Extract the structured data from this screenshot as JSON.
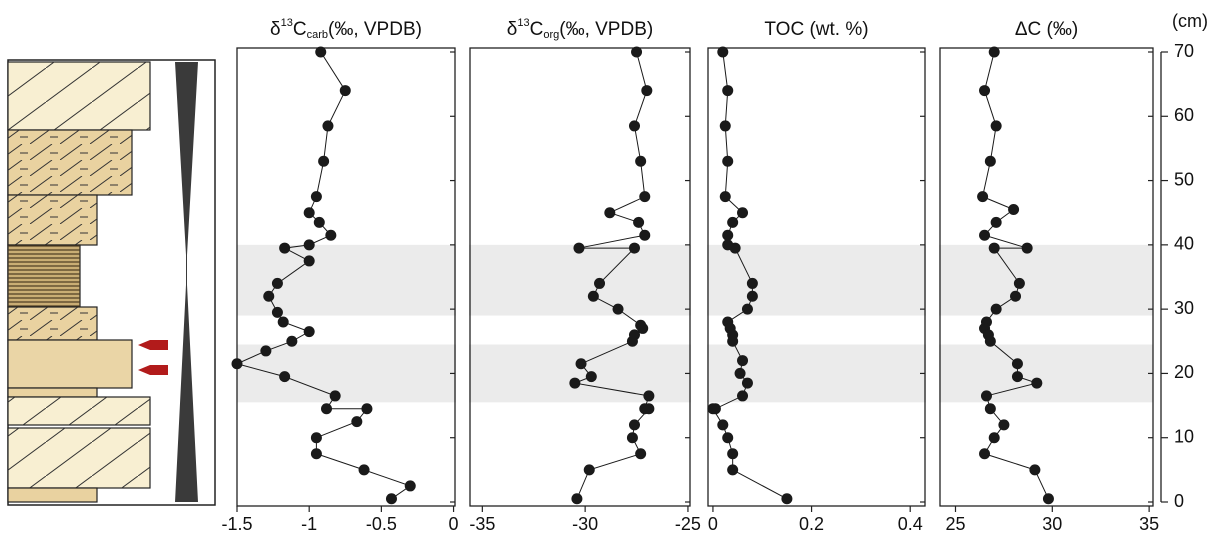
{
  "chart_data": [
    {
      "type": "line",
      "title_parts": [
        "δ",
        "13",
        "C",
        "carb",
        "(‰, VPDB)"
      ],
      "values": [
        -0.92,
        -0.75,
        -0.87,
        -0.9,
        -0.95,
        -1.0,
        -0.93,
        -0.85,
        -1.0,
        -1.17,
        -1.0,
        -1.22,
        -1.28,
        -1.22,
        -1.18,
        -1.0,
        -1.12,
        -1.3,
        -1.5,
        -1.17,
        -0.82,
        -0.88,
        -0.6,
        -0.67,
        -0.95,
        -0.95,
        -0.62,
        -0.3,
        -0.43
      ],
      "depth": [
        70,
        64,
        58.5,
        53,
        47.5,
        45,
        43.5,
        41.5,
        40,
        39.5,
        37.5,
        34,
        32,
        29.5,
        28,
        26.5,
        25,
        23.5,
        21.5,
        19.5,
        16.5,
        14.5,
        14.5,
        12.5,
        10,
        7.5,
        5,
        2.5,
        0.5
      ],
      "xlim": [
        -1.5,
        0.01
      ],
      "xticks": [
        -1.5,
        -1,
        -0.5,
        0
      ],
      "ylim": [
        0,
        70
      ],
      "bands": [
        [
          15.5,
          24.5
        ],
        [
          29,
          40
        ]
      ],
      "band_color": "#ebebeb",
      "color": "#1a1a1a"
    },
    {
      "type": "line",
      "title_parts": [
        "δ",
        "13",
        "C",
        "org",
        "(‰, VPDB)"
      ],
      "values": [
        -27.5,
        -27,
        -27.6,
        -27.3,
        -27.1,
        -28.8,
        -27.4,
        -27.1,
        -30.3,
        -27.6,
        -29.3,
        -29.6,
        -28.4,
        -27.3,
        -27.2,
        -27.6,
        -27.7,
        -30.2,
        -29.7,
        -30.5,
        -26.9,
        -27.1,
        -26.9,
        -27.6,
        -27.7,
        -27.3,
        -29.8,
        -30.4
      ],
      "depth": [
        70,
        64,
        58.5,
        53,
        47.5,
        45,
        43.5,
        41.5,
        39.5,
        39.5,
        34,
        32,
        30,
        27.5,
        27,
        26,
        25,
        21.5,
        19.5,
        18.5,
        16.5,
        14.5,
        14.5,
        12,
        10,
        7.5,
        5,
        0.5
      ],
      "xlim": [
        -35.6,
        -24.9
      ],
      "xticks": [
        -35,
        -30,
        -25
      ],
      "ylim": [
        0,
        70
      ],
      "color": "#1a1a1a"
    },
    {
      "type": "line",
      "title": "TOC (wt. %)",
      "values": [
        0.02,
        0.03,
        0.025,
        0.03,
        0.025,
        0.06,
        0.04,
        0.03,
        0.03,
        0.045,
        0.08,
        0.08,
        0.07,
        0.03,
        0.035,
        0.04,
        0.04,
        0.06,
        0.055,
        0.07,
        0.06,
        0.005,
        0.0,
        0.02,
        0.03,
        0.04,
        0.04,
        0.15
      ],
      "depth": [
        70,
        64,
        58.5,
        53,
        47.5,
        45,
        43.5,
        41.5,
        40,
        39.5,
        34,
        32,
        30,
        28,
        27,
        26,
        25,
        22,
        20,
        18.5,
        16.5,
        14.5,
        14.5,
        12,
        10,
        7.5,
        5,
        0.5
      ],
      "xlim": [
        -0.01,
        0.43
      ],
      "xticks": [
        0,
        0.2,
        0.4
      ],
      "ylim": [
        0,
        70
      ],
      "color": "#1a1a1a"
    },
    {
      "type": "line",
      "title": "ΔC (‰)",
      "values": [
        27,
        26.5,
        27.1,
        26.8,
        26.4,
        28,
        27.1,
        26.5,
        28.7,
        27,
        28.3,
        28.1,
        27.1,
        26.6,
        26.5,
        26.7,
        26.8,
        28.2,
        28.2,
        29.2,
        26.6,
        26.8,
        27.5,
        27,
        26.5,
        29.1,
        29.8
      ],
      "depth": [
        70,
        64,
        58.5,
        53,
        47.5,
        45.5,
        43.5,
        41.5,
        39.5,
        39.5,
        34,
        32,
        30,
        28,
        27,
        26,
        25,
        21.5,
        19.5,
        18.5,
        16.5,
        14.5,
        12,
        10,
        7.5,
        5,
        0.5
      ],
      "xlim": [
        24.2,
        35.2
      ],
      "xticks": [
        25,
        30,
        35
      ],
      "ylim": [
        0,
        70
      ],
      "yticks": [
        0,
        10,
        20,
        30,
        40,
        50,
        60,
        70
      ],
      "ylabel": "(cm)",
      "color": "#1a1a1a"
    }
  ]
}
